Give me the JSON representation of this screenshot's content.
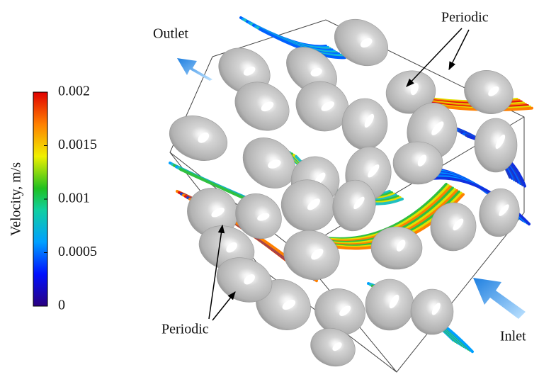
{
  "colorbar": {
    "label": "Velocity, m/s",
    "range": [
      0,
      0.002
    ],
    "ticks": [
      0,
      0.0005,
      0.001,
      0.0015,
      0.002
    ]
  },
  "annotations": {
    "outlet": "Outlet",
    "inlet": "Inlet",
    "periodic_top": "Periodic",
    "periodic_bottom": "Periodic"
  }
}
